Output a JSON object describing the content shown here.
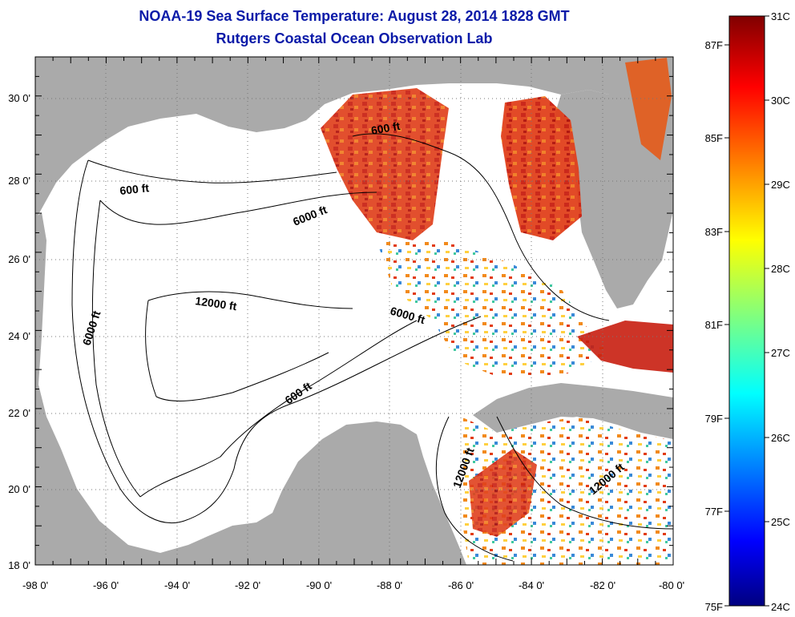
{
  "title": {
    "line1": "NOAA-19 Sea Surface Temperature:  August 28, 2014 1828 GMT",
    "line2": "Rutgers Coastal Ocean Observation Lab"
  },
  "map": {
    "lon_range": [
      -98,
      -80
    ],
    "lat_range": [
      18,
      31
    ],
    "lon_ticks": [
      "-98 0'",
      "-96 0'",
      "-94 0'",
      "-92 0'",
      "-90 0'",
      "-88 0'",
      "-86 0'",
      "-84 0'",
      "-82 0'",
      "-80 0'"
    ],
    "lat_ticks": [
      "18 0'",
      "20 0'",
      "22 0'",
      "24 0'",
      "26 0'",
      "28 0'",
      "30 0'"
    ],
    "contours": {
      "c600_west": "600 ft",
      "c6000_north": "6000 ft",
      "c6000_west": "6000 ft",
      "c12000": "12000 ft",
      "c6000_east": "6000 ft",
      "c600_south": "600 ft",
      "c600_ne": "600 ft",
      "c12000_yuc": "12000 ft",
      "c12000_cuba": "12000 ft"
    },
    "colors": {
      "land": "#aaaaaa",
      "water": "#ffffff",
      "title": "#0a1aa8"
    }
  },
  "colorbar": {
    "celsius": [
      "31C",
      "30C",
      "29C",
      "28C",
      "27C",
      "26C",
      "25C",
      "24C"
    ],
    "fahrenheit": [
      "87F",
      "85F",
      "83F",
      "81F",
      "79F",
      "77F",
      "75F"
    ],
    "range_c": [
      24,
      31
    ],
    "range_f": [
      75,
      87.8
    ]
  }
}
